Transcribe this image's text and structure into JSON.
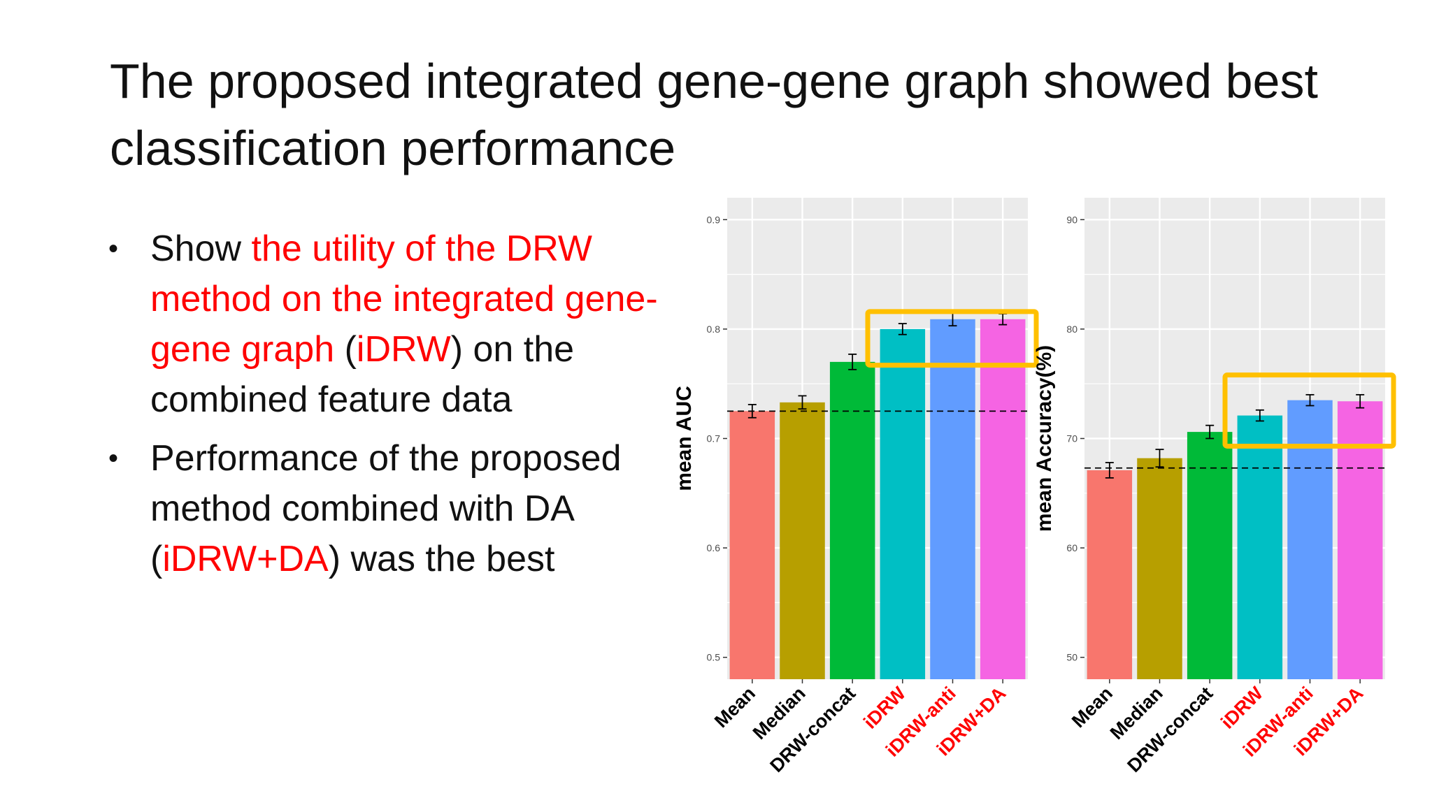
{
  "slide": {
    "title_line1": "The proposed integrated gene-gene graph showed best",
    "title_line2": "classification performance",
    "bullets": [
      {
        "parts": [
          {
            "text": "Show ",
            "hl": false
          },
          {
            "text": "the utility of the DRW method on the integrated gene-gene graph",
            "hl": true
          },
          {
            "text": " (",
            "hl": false
          },
          {
            "text": "iDRW",
            "hl": true
          },
          {
            "text": ") on the combined feature data",
            "hl": false
          }
        ]
      },
      {
        "parts": [
          {
            "text": "Performance of the proposed method combined with DA (",
            "hl": false
          },
          {
            "text": "iDRW+DA",
            "hl": true
          },
          {
            "text": ") was the best",
            "hl": false
          }
        ]
      }
    ]
  },
  "colors": {
    "highlight_text": "#ff0000",
    "highlight_box": "#ffc000",
    "panel_bg": "#ebebeb",
    "grid": "#ffffff",
    "bars": [
      "#f8766d",
      "#b79f00",
      "#00ba38",
      "#00bfc4",
      "#619cff",
      "#f564e3"
    ]
  },
  "chart_data": [
    {
      "type": "bar",
      "categories": [
        "Mean",
        "Median",
        "DRW-concat",
        "iDRW",
        "iDRW-anti",
        "iDRW+DA"
      ],
      "highlighted_categories": [
        "iDRW",
        "iDRW-anti",
        "iDRW+DA"
      ],
      "values": [
        0.725,
        0.733,
        0.77,
        0.8,
        0.809,
        0.809
      ],
      "errors": [
        0.006,
        0.006,
        0.007,
        0.005,
        0.006,
        0.005
      ],
      "baseline": 0.725,
      "ylabel": "mean AUC",
      "xlabel": "",
      "ylim": [
        0.48,
        0.92
      ],
      "yticks": [
        0.5,
        0.6,
        0.7,
        0.8,
        0.9
      ],
      "ytick_labels": [
        "0.5",
        "0.6",
        "0.7",
        "0.8",
        "0.9"
      ],
      "grid": true,
      "highlight_range": [
        0.767,
        0.816
      ]
    },
    {
      "type": "bar",
      "categories": [
        "Mean",
        "Median",
        "DRW-concat",
        "iDRW",
        "iDRW-anti",
        "iDRW+DA"
      ],
      "highlighted_categories": [
        "iDRW",
        "iDRW-anti",
        "iDRW+DA"
      ],
      "values": [
        67.1,
        68.2,
        70.6,
        72.1,
        73.5,
        73.4
      ],
      "errors": [
        0.7,
        0.8,
        0.6,
        0.5,
        0.5,
        0.6
      ],
      "baseline": 67.3,
      "ylabel": "mean Accuracy(%)",
      "xlabel": "",
      "ylim": [
        48,
        92
      ],
      "yticks": [
        50,
        60,
        70,
        80,
        90
      ],
      "ytick_labels": [
        "50",
        "60",
        "70",
        "80",
        "90"
      ],
      "grid": true,
      "highlight_range": [
        69.3,
        75.8
      ]
    }
  ]
}
